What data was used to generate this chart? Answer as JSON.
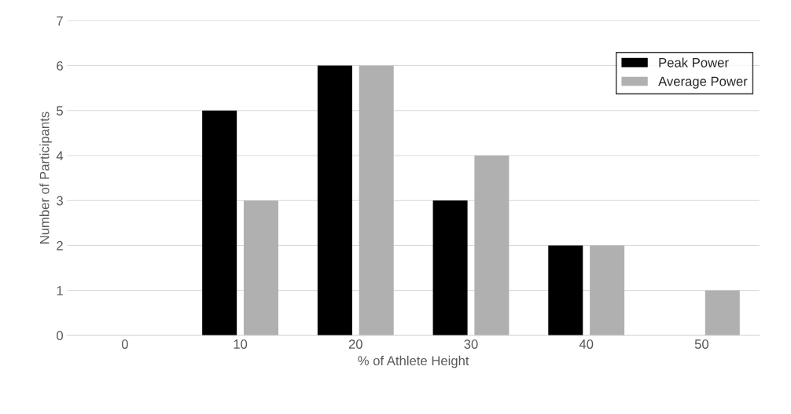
{
  "chart_data": {
    "type": "bar",
    "xlabel": "% of Athlete Height",
    "ylabel": "Number of Participants",
    "categories": [
      "0",
      "10",
      "20",
      "30",
      "40",
      "50"
    ],
    "series": [
      {
        "name": "Peak Power",
        "color": "#000000",
        "values": [
          0,
          5,
          6,
          3,
          2,
          0
        ]
      },
      {
        "name": "Average Power",
        "color": "#b0b0b0",
        "values": [
          0,
          3,
          6,
          4,
          2,
          1
        ]
      }
    ],
    "ylim": [
      0,
      7
    ],
    "yticks": [
      0,
      1,
      2,
      3,
      4,
      5,
      6,
      7
    ],
    "grid": "y",
    "legend": "top right"
  }
}
